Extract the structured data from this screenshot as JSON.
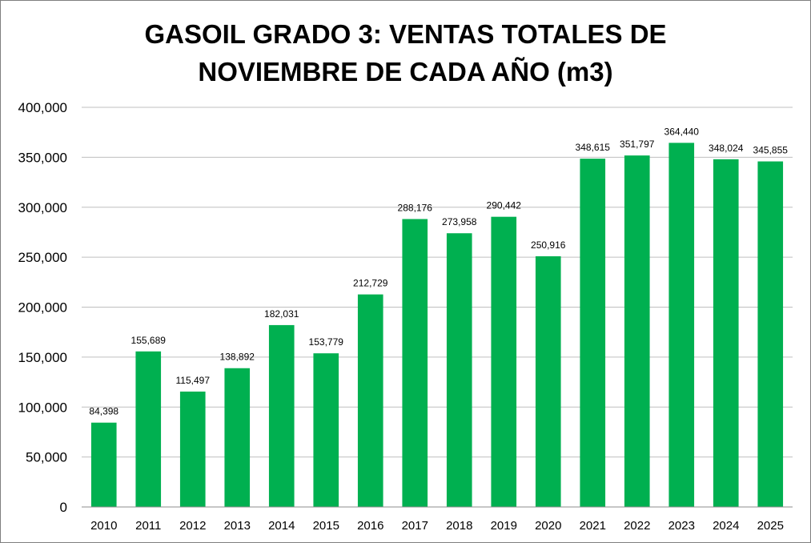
{
  "chart_data": {
    "type": "bar",
    "title_line1": "GASOIL GRADO 3: VENTAS TOTALES DE",
    "title_line2": "NOVIEMBRE DE CADA AÑO (m3)",
    "xlabel": "",
    "ylabel": "",
    "categories": [
      "2010",
      "2011",
      "2012",
      "2013",
      "2014",
      "2015",
      "2016",
      "2017",
      "2018",
      "2019",
      "2020",
      "2021",
      "2022",
      "2023",
      "2024",
      "2025"
    ],
    "values": [
      84398,
      155689,
      115497,
      138892,
      182031,
      153779,
      212729,
      288176,
      273958,
      290442,
      250916,
      348615,
      351797,
      364440,
      348024,
      345855
    ],
    "value_labels": [
      "84,398",
      "155,689",
      "115,497",
      "138,892",
      "182,031",
      "153,779",
      "212,729",
      "288,176",
      "273,958",
      "290,442",
      "250,916",
      "348,615",
      "351,797",
      "364,440",
      "348,024",
      "345,855"
    ],
    "ylim": [
      0,
      400000
    ],
    "y_ticks": [
      0,
      50000,
      100000,
      150000,
      200000,
      250000,
      300000,
      350000,
      400000
    ],
    "y_tick_labels": [
      "0",
      "50,000",
      "100,000",
      "150,000",
      "200,000",
      "250,000",
      "300,000",
      "350,000",
      "400,000"
    ],
    "grid": true,
    "legend": "none",
    "bar_color": "#00b050",
    "grid_color": "#bfbfbf"
  }
}
